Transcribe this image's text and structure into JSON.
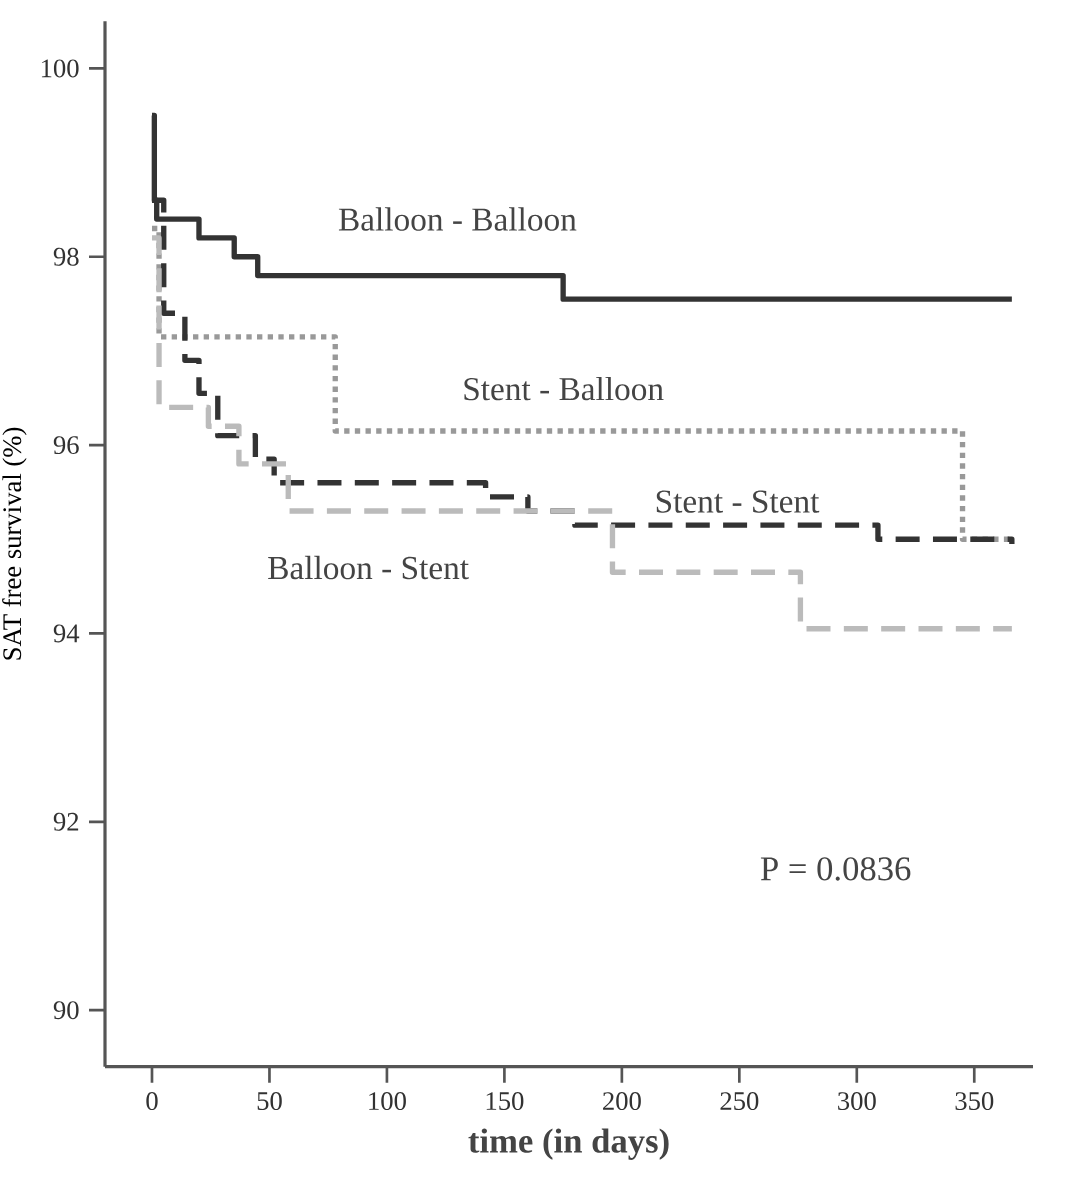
{
  "chart_data": {
    "type": "step",
    "xlabel": "time (in days)",
    "ylabel": "SAT free survival (%)",
    "xlim": [
      -20,
      375
    ],
    "ylim": [
      89.4,
      100.5
    ],
    "xticks": [
      0,
      50,
      100,
      150,
      200,
      250,
      300,
      350
    ],
    "yticks": [
      90,
      92,
      94,
      96,
      98,
      100
    ],
    "grid": false,
    "legend": false,
    "marker": "none",
    "series": [
      {
        "name": "Balloon - Balloon",
        "color": "#333333",
        "line_style": "solid",
        "x": [
          0,
          1,
          2,
          20,
          35,
          45,
          175,
          366
        ],
        "values": [
          99.5,
          98.6,
          98.4,
          98.2,
          98.0,
          97.8,
          97.55,
          97.55
        ]
      },
      {
        "name": "Stent - Balloon",
        "color": "#999999",
        "line_style": "dotted",
        "x": [
          0,
          3,
          78,
          345,
          366
        ],
        "values": [
          98.3,
          97.15,
          96.15,
          95.0,
          95.0
        ]
      },
      {
        "name": "Stent - Stent",
        "color": "#333333",
        "line_style": "dashed",
        "x": [
          0,
          5,
          14,
          20,
          28,
          44,
          52,
          142,
          160,
          180,
          309,
          366
        ],
        "values": [
          98.6,
          97.4,
          96.9,
          96.55,
          96.1,
          95.85,
          95.6,
          95.45,
          95.3,
          95.15,
          95.0,
          94.95
        ]
      },
      {
        "name": "Balloon - Stent",
        "color": "#bbbbbb",
        "line_style": "dashed",
        "x": [
          0,
          3,
          24,
          37,
          58,
          196,
          276,
          366
        ],
        "values": [
          98.2,
          96.4,
          96.2,
          95.8,
          95.3,
          94.65,
          94.05,
          94.05
        ]
      }
    ],
    "annotations": [
      "P =      0.0836"
    ]
  }
}
